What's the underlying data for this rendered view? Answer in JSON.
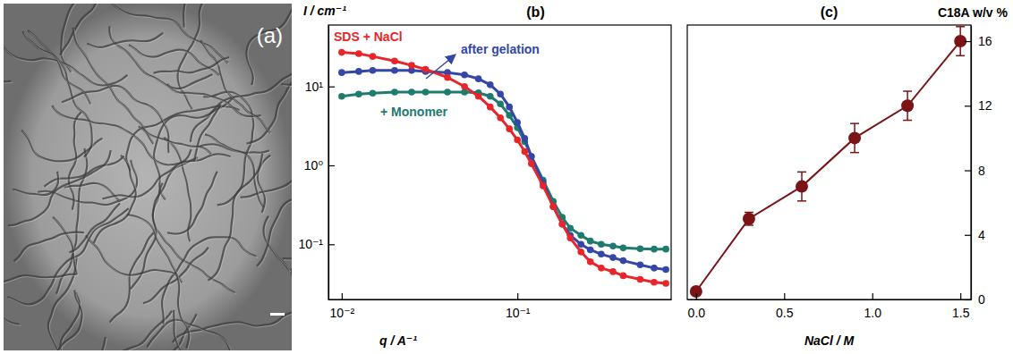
{
  "chart_data": [
    {
      "type": "image",
      "title": "(a)"
    },
    {
      "type": "scatter",
      "title": "(b)",
      "x_label": "q / A⁻¹",
      "y_label": "I / cm⁻¹",
      "log": true,
      "marker": "circle",
      "line_style": "solid",
      "x": [
        0.01,
        0.0125,
        0.015,
        0.02,
        0.025,
        0.03,
        0.04,
        0.05,
        0.06,
        0.07,
        0.08,
        0.09,
        0.1,
        0.11,
        0.12,
        0.14,
        0.16,
        0.18,
        0.2,
        0.23,
        0.26,
        0.3,
        0.35,
        0.4,
        0.5,
        0.6,
        0.7
      ],
      "series": [
        {
          "name": "+ Monomer",
          "color": "#1e7b6e",
          "values": [
            7.5,
            8,
            8.2,
            8.5,
            8.5,
            8.5,
            8.5,
            8.5,
            8.3,
            7.5,
            6,
            4.3,
            3,
            2,
            1.3,
            0.65,
            0.35,
            0.22,
            0.16,
            0.13,
            0.11,
            0.1,
            0.095,
            0.09,
            0.088,
            0.087,
            0.087
          ]
        },
        {
          "name": "after gelation",
          "color": "#3446a8",
          "values": [
            15,
            15.5,
            16,
            16,
            16,
            15.5,
            15,
            14,
            12.5,
            10.5,
            8,
            5.5,
            3.5,
            2.2,
            1.3,
            0.6,
            0.3,
            0.18,
            0.13,
            0.1,
            0.085,
            0.075,
            0.068,
            0.062,
            0.055,
            0.05,
            0.048
          ]
        },
        {
          "name": "SDS + NaCl",
          "color": "#e8252b",
          "values": [
            27,
            26,
            24,
            21,
            18.5,
            16.5,
            13,
            10,
            7.5,
            5.5,
            4,
            2.9,
            2.1,
            1.5,
            1.05,
            0.55,
            0.3,
            0.18,
            0.12,
            0.08,
            0.06,
            0.05,
            0.045,
            0.04,
            0.036,
            0.033,
            0.032
          ]
        }
      ],
      "xlim": [
        0.0084,
        0.75
      ],
      "ylim": [
        0.02,
        60
      ],
      "xticks": [
        {
          "value": 0.01,
          "label": "10⁻²"
        },
        {
          "value": 0.1,
          "label": "10⁻¹"
        }
      ],
      "yticks": [
        {
          "value": 0.1,
          "label": "10⁻¹"
        },
        {
          "value": 1,
          "label": "10⁰"
        },
        {
          "value": 10,
          "label": "10¹"
        }
      ]
    },
    {
      "type": "line",
      "title": "(c)",
      "x_label": "NaCl / M",
      "y_label": "C18A w/v %",
      "color": "#7a1416",
      "marker": "circle",
      "x": [
        0,
        0.3,
        0.6,
        0.9,
        1.2,
        1.5
      ],
      "values": [
        0.5,
        5,
        7,
        10,
        12,
        16
      ],
      "errors": [
        0,
        0.4,
        0.9,
        0.9,
        0.9,
        0.9
      ],
      "xlim": [
        -0.05,
        1.56
      ],
      "ylim": [
        0,
        17
      ],
      "xticks": [
        {
          "value": 0,
          "label": "0.0"
        },
        {
          "value": 0.5,
          "label": "0.5"
        },
        {
          "value": 1,
          "label": "1.0"
        },
        {
          "value": 1.5,
          "label": "1.5"
        }
      ],
      "yticks": [
        0,
        4,
        8,
        12,
        16
      ]
    }
  ]
}
